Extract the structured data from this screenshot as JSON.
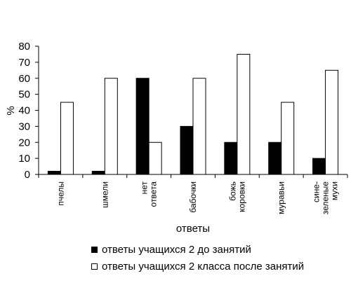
{
  "chart_data": {
    "type": "bar",
    "title": "",
    "xlabel": "ответы",
    "ylabel": "%",
    "ylim": [
      0,
      80
    ],
    "yticks": [
      0,
      10,
      20,
      30,
      40,
      50,
      60,
      70,
      80
    ],
    "grid": false,
    "legend_position": "bottom",
    "categories": [
      [
        "пчелы"
      ],
      [
        "шмели"
      ],
      [
        "нет",
        "ответа"
      ],
      [
        "бабочки"
      ],
      [
        "божь",
        "коровки"
      ],
      [
        "муравьи"
      ],
      [
        "сине-",
        "зеленые",
        "мухи"
      ]
    ],
    "series": [
      {
        "name": "ответы учащихся 2 до занятий",
        "color": "#000000",
        "values": [
          2,
          2,
          60,
          30,
          20,
          20,
          10
        ]
      },
      {
        "name": "ответы учащихся 2 класса после занятий",
        "color": "#ffffff",
        "values": [
          45,
          60,
          20,
          60,
          75,
          45,
          65
        ]
      }
    ]
  }
}
